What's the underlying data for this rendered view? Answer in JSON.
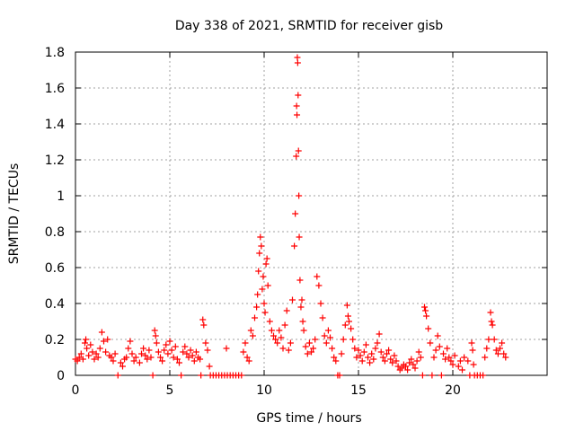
{
  "chart_data": {
    "type": "scatter",
    "title": "Day 338 of 2021, SRMTID for receiver gisb",
    "xlabel": "GPS time / hours",
    "ylabel": "SRMTID / TECUs",
    "xlim": [
      0,
      25
    ],
    "ylim": [
      0,
      1.8
    ],
    "xticks": [
      "0",
      "5",
      "10",
      "15",
      "20"
    ],
    "yticks": [
      "0",
      "0.2",
      "0.4",
      "0.6",
      "0.8",
      "1",
      "1.2",
      "1.4",
      "1.6",
      "1.8"
    ],
    "grid": true,
    "marker": "+",
    "series": [
      {
        "name": "SRMTID",
        "color": "#ff0000",
        "points": [
          [
            0.0,
            0.09
          ],
          [
            0.1,
            0.08
          ],
          [
            0.2,
            0.1
          ],
          [
            0.3,
            0.12
          ],
          [
            0.4,
            0.09
          ],
          [
            0.5,
            0.18
          ],
          [
            0.55,
            0.2
          ],
          [
            0.6,
            0.15
          ],
          [
            0.7,
            0.11
          ],
          [
            0.8,
            0.17
          ],
          [
            0.9,
            0.13
          ],
          [
            1.0,
            0.09
          ],
          [
            1.1,
            0.12
          ],
          [
            1.2,
            0.1
          ],
          [
            1.3,
            0.15
          ],
          [
            1.4,
            0.24
          ],
          [
            1.5,
            0.19
          ],
          [
            1.6,
            0.13
          ],
          [
            1.7,
            0.2
          ],
          [
            1.8,
            0.11
          ],
          [
            1.9,
            0.1
          ],
          [
            2.0,
            0.08
          ],
          [
            2.1,
            0.12
          ],
          [
            2.25,
            0.0
          ],
          [
            2.4,
            0.07
          ],
          [
            2.5,
            0.05
          ],
          [
            2.6,
            0.09
          ],
          [
            2.7,
            0.1
          ],
          [
            2.8,
            0.15
          ],
          [
            2.9,
            0.19
          ],
          [
            3.0,
            0.12
          ],
          [
            3.1,
            0.08
          ],
          [
            3.2,
            0.1
          ],
          [
            3.4,
            0.07
          ],
          [
            3.5,
            0.12
          ],
          [
            3.6,
            0.15
          ],
          [
            3.7,
            0.11
          ],
          [
            3.8,
            0.09
          ],
          [
            3.9,
            0.14
          ],
          [
            4.0,
            0.1
          ],
          [
            4.1,
            0.0
          ],
          [
            4.2,
            0.25
          ],
          [
            4.25,
            0.22
          ],
          [
            4.3,
            0.18
          ],
          [
            4.4,
            0.13
          ],
          [
            4.5,
            0.1
          ],
          [
            4.6,
            0.08
          ],
          [
            4.7,
            0.14
          ],
          [
            4.8,
            0.17
          ],
          [
            4.9,
            0.12
          ],
          [
            5.0,
            0.19
          ],
          [
            5.1,
            0.14
          ],
          [
            5.2,
            0.1
          ],
          [
            5.3,
            0.16
          ],
          [
            5.4,
            0.09
          ],
          [
            5.5,
            0.07
          ],
          [
            5.6,
            0.0
          ],
          [
            5.7,
            0.13
          ],
          [
            5.8,
            0.16
          ],
          [
            5.9,
            0.12
          ],
          [
            6.0,
            0.1
          ],
          [
            6.1,
            0.14
          ],
          [
            6.2,
            0.11
          ],
          [
            6.3,
            0.08
          ],
          [
            6.4,
            0.13
          ],
          [
            6.5,
            0.1
          ],
          [
            6.6,
            0.09
          ],
          [
            6.65,
            0.0
          ],
          [
            6.75,
            0.31
          ],
          [
            6.8,
            0.28
          ],
          [
            6.9,
            0.18
          ],
          [
            7.0,
            0.14
          ],
          [
            7.1,
            0.05
          ],
          [
            7.15,
            0.0
          ],
          [
            7.3,
            0.0
          ],
          [
            7.45,
            0.0
          ],
          [
            7.6,
            0.0
          ],
          [
            7.75,
            0.0
          ],
          [
            7.9,
            0.0
          ],
          [
            8.05,
            0.0
          ],
          [
            8.2,
            0.0
          ],
          [
            8.35,
            0.0
          ],
          [
            8.5,
            0.0
          ],
          [
            8.65,
            0.0
          ],
          [
            8.8,
            0.0
          ],
          [
            8.0,
            0.15
          ],
          [
            8.9,
            0.13
          ],
          [
            9.0,
            0.18
          ],
          [
            9.1,
            0.1
          ],
          [
            9.2,
            0.08
          ],
          [
            9.3,
            0.25
          ],
          [
            9.4,
            0.22
          ],
          [
            9.5,
            0.32
          ],
          [
            9.6,
            0.38
          ],
          [
            9.65,
            0.45
          ],
          [
            9.7,
            0.58
          ],
          [
            9.75,
            0.68
          ],
          [
            9.8,
            0.77
          ],
          [
            9.85,
            0.72
          ],
          [
            9.9,
            0.48
          ],
          [
            9.95,
            0.55
          ],
          [
            10.0,
            0.4
          ],
          [
            10.05,
            0.35
          ],
          [
            10.1,
            0.62
          ],
          [
            10.15,
            0.65
          ],
          [
            10.2,
            0.5
          ],
          [
            10.3,
            0.3
          ],
          [
            10.4,
            0.25
          ],
          [
            10.5,
            0.22
          ],
          [
            10.6,
            0.2
          ],
          [
            10.7,
            0.18
          ],
          [
            10.8,
            0.25
          ],
          [
            10.9,
            0.21
          ],
          [
            11.0,
            0.15
          ],
          [
            11.1,
            0.28
          ],
          [
            11.2,
            0.36
          ],
          [
            11.3,
            0.14
          ],
          [
            11.4,
            0.18
          ],
          [
            11.5,
            0.42
          ],
          [
            11.6,
            0.72
          ],
          [
            11.65,
            0.9
          ],
          [
            11.7,
            1.22
          ],
          [
            11.72,
            1.5
          ],
          [
            11.74,
            1.45
          ],
          [
            11.76,
            1.77
          ],
          [
            11.78,
            1.74
          ],
          [
            11.8,
            1.56
          ],
          [
            11.82,
            1.25
          ],
          [
            11.84,
            1.0
          ],
          [
            11.86,
            0.77
          ],
          [
            11.9,
            0.53
          ],
          [
            11.95,
            0.38
          ],
          [
            12.0,
            0.42
          ],
          [
            12.05,
            0.3
          ],
          [
            12.1,
            0.25
          ],
          [
            12.2,
            0.16
          ],
          [
            12.3,
            0.12
          ],
          [
            12.4,
            0.18
          ],
          [
            12.5,
            0.13
          ],
          [
            12.6,
            0.15
          ],
          [
            12.7,
            0.2
          ],
          [
            12.8,
            0.55
          ],
          [
            12.9,
            0.5
          ],
          [
            13.0,
            0.4
          ],
          [
            13.1,
            0.32
          ],
          [
            13.2,
            0.22
          ],
          [
            13.3,
            0.18
          ],
          [
            13.4,
            0.25
          ],
          [
            13.5,
            0.21
          ],
          [
            13.6,
            0.15
          ],
          [
            13.7,
            0.1
          ],
          [
            13.8,
            0.08
          ],
          [
            13.9,
            0.0
          ],
          [
            14.0,
            0.0
          ],
          [
            14.1,
            0.12
          ],
          [
            14.2,
            0.2
          ],
          [
            14.3,
            0.28
          ],
          [
            14.4,
            0.39
          ],
          [
            14.45,
            0.33
          ],
          [
            14.5,
            0.3
          ],
          [
            14.6,
            0.26
          ],
          [
            14.7,
            0.2
          ],
          [
            14.8,
            0.15
          ],
          [
            14.9,
            0.1
          ],
          [
            15.0,
            0.14
          ],
          [
            15.1,
            0.11
          ],
          [
            15.2,
            0.08
          ],
          [
            15.3,
            0.13
          ],
          [
            15.4,
            0.17
          ],
          [
            15.5,
            0.1
          ],
          [
            15.6,
            0.07
          ],
          [
            15.7,
            0.12
          ],
          [
            15.8,
            0.09
          ],
          [
            15.9,
            0.15
          ],
          [
            16.0,
            0.18
          ],
          [
            16.1,
            0.23
          ],
          [
            16.2,
            0.13
          ],
          [
            16.3,
            0.1
          ],
          [
            16.4,
            0.08
          ],
          [
            16.5,
            0.12
          ],
          [
            16.6,
            0.14
          ],
          [
            16.7,
            0.09
          ],
          [
            16.8,
            0.07
          ],
          [
            16.9,
            0.11
          ],
          [
            17.0,
            0.08
          ],
          [
            17.1,
            0.05
          ],
          [
            17.2,
            0.03
          ],
          [
            17.3,
            0.04
          ],
          [
            17.4,
            0.06
          ],
          [
            17.5,
            0.05
          ],
          [
            17.6,
            0.03
          ],
          [
            17.7,
            0.07
          ],
          [
            17.8,
            0.09
          ],
          [
            17.9,
            0.06
          ],
          [
            18.0,
            0.04
          ],
          [
            18.1,
            0.08
          ],
          [
            18.2,
            0.13
          ],
          [
            18.3,
            0.1
          ],
          [
            18.4,
            0.0
          ],
          [
            18.5,
            0.38
          ],
          [
            18.55,
            0.36
          ],
          [
            18.6,
            0.33
          ],
          [
            18.7,
            0.26
          ],
          [
            18.8,
            0.18
          ],
          [
            18.9,
            0.0
          ],
          [
            19.0,
            0.1
          ],
          [
            19.1,
            0.14
          ],
          [
            19.2,
            0.22
          ],
          [
            19.3,
            0.16
          ],
          [
            19.4,
            0.0
          ],
          [
            19.5,
            0.12
          ],
          [
            19.6,
            0.09
          ],
          [
            19.7,
            0.15
          ],
          [
            19.8,
            0.1
          ],
          [
            19.9,
            0.08
          ],
          [
            20.0,
            0.06
          ],
          [
            20.1,
            0.11
          ],
          [
            20.3,
            0.05
          ],
          [
            20.4,
            0.08
          ],
          [
            20.5,
            0.03
          ],
          [
            20.6,
            0.1
          ],
          [
            20.8,
            0.08
          ],
          [
            20.9,
            0.0
          ],
          [
            21.0,
            0.18
          ],
          [
            21.05,
            0.14
          ],
          [
            21.1,
            0.06
          ],
          [
            21.15,
            0.0
          ],
          [
            21.3,
            0.0
          ],
          [
            21.45,
            0.0
          ],
          [
            21.6,
            0.0
          ],
          [
            21.7,
            0.1
          ],
          [
            21.8,
            0.15
          ],
          [
            21.9,
            0.2
          ],
          [
            22.0,
            0.35
          ],
          [
            22.05,
            0.3
          ],
          [
            22.1,
            0.28
          ],
          [
            22.2,
            0.2
          ],
          [
            22.3,
            0.14
          ],
          [
            22.4,
            0.12
          ],
          [
            22.5,
            0.15
          ],
          [
            22.6,
            0.18
          ],
          [
            22.7,
            0.12
          ],
          [
            22.8,
            0.1
          ]
        ]
      }
    ]
  }
}
